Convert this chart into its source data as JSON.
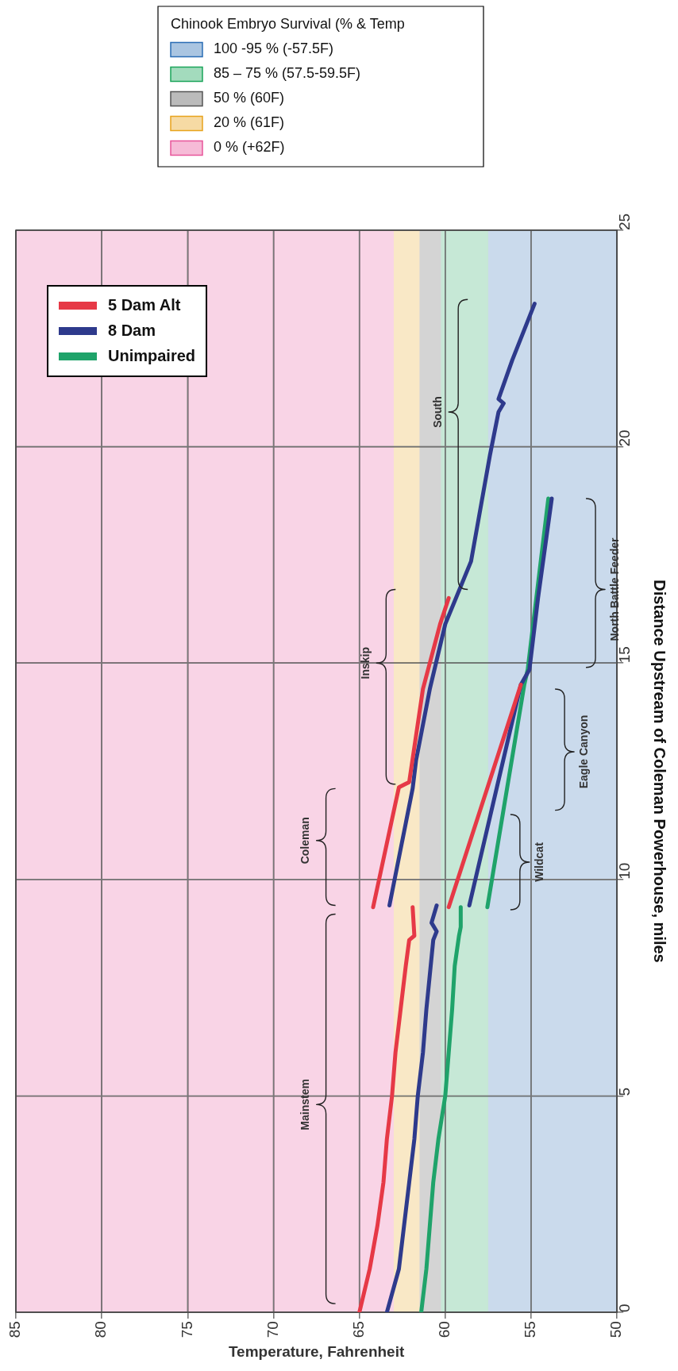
{
  "chart_data": {
    "type": "line",
    "xlabel": "Temperature, Fahrenheit",
    "ylabel": "Distance Upstream of Coleman Powerhouse, miles",
    "xlim": [
      85,
      50
    ],
    "xticks": [
      85,
      80,
      75,
      70,
      65,
      60,
      55,
      50
    ],
    "ylim": [
      0,
      25
    ],
    "yticks": [
      0,
      5,
      10,
      15,
      20,
      25
    ],
    "grid": true,
    "legend": "top left",
    "marker": "none",
    "line_style": "solid",
    "legend_title": "Chinook Embryo Survival (% & Temp",
    "bands": [
      {
        "axis": "x",
        "from": 50,
        "to": 57.5,
        "label": "100 -95 % (-57.5F)",
        "color": "#2a6db5"
      },
      {
        "axis": "x",
        "from": 57.5,
        "to": 60.25,
        "label": "85 – 75 % (57.5-59.5F)",
        "color": "#1aa55a"
      },
      {
        "axis": "x",
        "from": 60.25,
        "to": 61.5,
        "label": "50 % (60F)",
        "color": "#555555"
      },
      {
        "axis": "x",
        "from": 61.5,
        "to": 63,
        "label": "20 % (61F)",
        "color": "#e8a31c"
      },
      {
        "axis": "x",
        "from": 63,
        "to": 85,
        "label": "0 % (+62F)",
        "color": "#e8559a"
      }
    ],
    "annotations": [
      "Mainstem",
      "Coleman",
      "Inskip",
      "South",
      "Wildcat",
      "Eagle Canyon",
      "North Battle Feeder"
    ],
    "series": [
      {
        "name": "5 Dam Alt",
        "color": "#e63946",
        "x": [
          65,
          64.4,
          63.95,
          63.6,
          63.4,
          63.1,
          62.9,
          62.6,
          62.3,
          62.1,
          61.8,
          61.9
        ],
        "values": [
          0,
          1,
          2,
          3,
          4,
          5,
          6,
          7,
          8,
          8.6,
          8.7,
          9.36
        ]
      },
      {
        "color": "#e63946",
        "x": [
          64.2,
          62.7,
          62.1,
          61.3,
          60.3,
          59.8
        ],
        "values": [
          9.36,
          12.13,
          12.25,
          14.4,
          15.9,
          16.5
        ]
      },
      {
        "color": "#e63946",
        "x": [
          59.8,
          55.6
        ],
        "values": [
          9.36,
          14.5
        ]
      },
      {
        "name": "8 Dam",
        "color": "#2e3a8c",
        "x": [
          63.4,
          62.7,
          62.4,
          62.1,
          61.8,
          61.6,
          61.3,
          61.1,
          60.85,
          60.7,
          60.5,
          60.8,
          60.5
        ],
        "values": [
          0,
          1,
          2,
          3,
          4,
          5,
          6,
          7,
          8,
          8.6,
          8.8,
          9,
          9.4
        ]
      },
      {
        "color": "#2e3a8c",
        "x": [
          63.25,
          62,
          61.9,
          61.7,
          60.9,
          60,
          58.5,
          57.4,
          56.9,
          56.6,
          56.9,
          56.1,
          54.8
        ],
        "values": [
          9.4,
          11.9,
          12.1,
          12.75,
          14.4,
          15.9,
          17.35,
          19.8,
          20.8,
          21,
          21.1,
          22,
          23.3
        ]
      },
      {
        "color": "#2e3a8c",
        "x": [
          58.6,
          55.6,
          55.1,
          54.6,
          53.8
        ],
        "values": [
          9.4,
          14.5,
          14.85,
          16.5,
          18.8
        ]
      },
      {
        "name": "Unimpaired",
        "color": "#1fa36a",
        "x": [
          61.4,
          61.1,
          60.9,
          60.7,
          60.4,
          60,
          59.8,
          59.6,
          59.45,
          59.2,
          59.1,
          59.1
        ],
        "values": [
          0,
          1,
          2,
          3,
          4,
          5,
          6,
          7,
          8,
          8.7,
          8.9,
          9.36
        ]
      },
      {
        "color": "#1fa36a",
        "x": [
          57.55,
          55.4,
          55.2,
          54.7,
          54
        ],
        "values": [
          9.36,
          14.5,
          14.85,
          16.5,
          18.8
        ]
      }
    ]
  }
}
